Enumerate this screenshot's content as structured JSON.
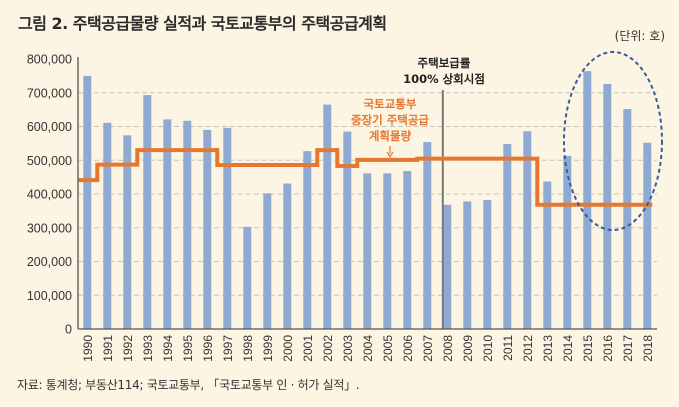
{
  "title": "그림 2.  주택공급물량 실적과 국토교통부의 주택공급계획",
  "unit": "(단위: 호)",
  "source": "자료: 통계청; 부동산114; 국토교통부, 「국토교통부 인 · 허가 실적」.",
  "colors": {
    "bar": "#8eaad3",
    "plan_line": "#e8772e",
    "marker_line": "#777777",
    "ellipse": "#3a5a9a",
    "grid": "#c8c4bc",
    "axis": "#555555"
  },
  "chart_data": {
    "type": "bar",
    "title": "주택공급물량 실적과 국토교통부의 주택공급계획",
    "xlabel": "",
    "ylabel": "",
    "ylim": [
      0,
      800000
    ],
    "yticks": [
      0,
      100000,
      200000,
      300000,
      400000,
      500000,
      600000,
      700000,
      800000
    ],
    "ytick_labels": [
      "0",
      "100,000",
      "200,000",
      "300,000",
      "400,000",
      "500,000",
      "600,000",
      "700,000",
      "800,000"
    ],
    "grid": true,
    "categories": [
      "1990",
      "1991",
      "1992",
      "1993",
      "1994",
      "1995",
      "1996",
      "1997",
      "1998",
      "1999",
      "2000",
      "2001",
      "2002",
      "2003",
      "2004",
      "2005",
      "2006",
      "2007",
      "2008",
      "2009",
      "2010",
      "2011",
      "2012",
      "2013",
      "2014",
      "2015",
      "2016",
      "2017",
      "2018"
    ],
    "series": [
      {
        "name": "주택공급물량 실적",
        "type": "bar",
        "values": [
          750000,
          611000,
          574000,
          693000,
          621000,
          617000,
          590000,
          596000,
          303000,
          402000,
          431000,
          527000,
          665000,
          585000,
          461000,
          461000,
          468000,
          554000,
          368000,
          378000,
          382000,
          548000,
          586000,
          437000,
          513000,
          764000,
          726000,
          652000,
          552000
        ]
      },
      {
        "name": "국토교통부 중장기 주택공급 계획물량",
        "type": "step-line",
        "values": [
          441000,
          487000,
          487000,
          530000,
          530000,
          530000,
          530000,
          486000,
          486000,
          486000,
          486000,
          486000,
          530000,
          483000,
          501000,
          501000,
          501000,
          505000,
          505000,
          505000,
          505000,
          505000,
          505000,
          368000,
          368000,
          368000,
          368000,
          368000,
          368000
        ]
      }
    ],
    "annotations": [
      {
        "text_lines": [
          "주택보급률",
          "100% 상회시점"
        ],
        "type": "vertical-line",
        "at": "2008"
      },
      {
        "text_lines": [
          "국토교통부",
          "중장기 주택공급",
          "계획물량"
        ],
        "type": "arrow-label",
        "target_series": "국토교통부 중장기 주택공급 계획물량",
        "at": "2005"
      },
      {
        "type": "dashed-ellipse",
        "highlight": [
          "2015",
          "2016",
          "2017",
          "2018"
        ]
      }
    ]
  }
}
